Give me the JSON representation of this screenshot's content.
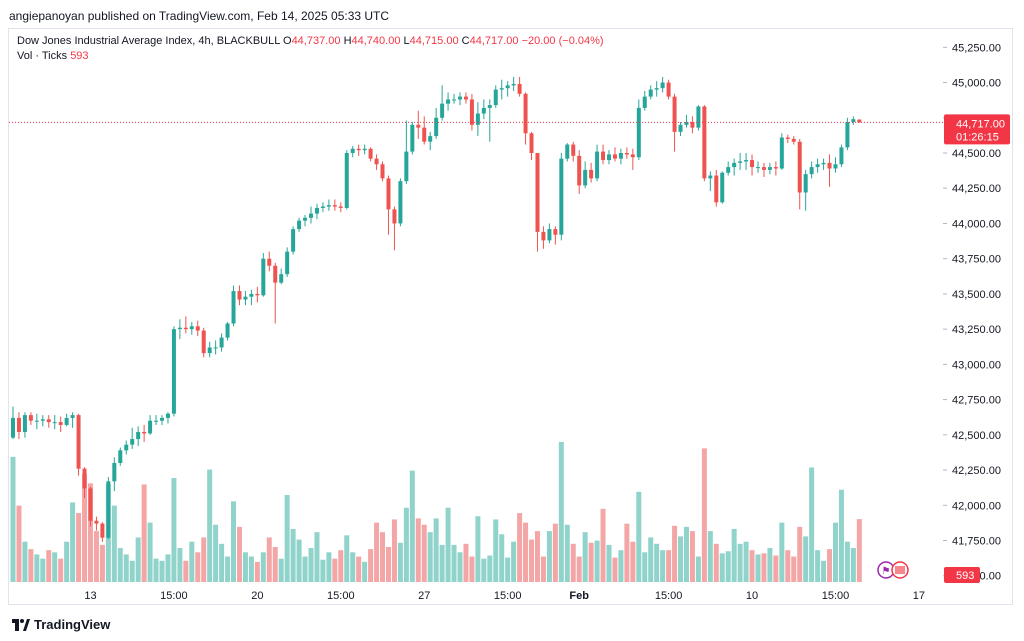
{
  "header": {
    "published_by": "angiepanoyan published on TradingView.com, Feb 14, 2025 05:33 UTC"
  },
  "legend": {
    "symbol": "Dow Jones Industrial Average Index, 4h, BLACKBULL",
    "open_label": "O",
    "open": "44,737.00",
    "high_label": "H",
    "high": "44,740.00",
    "low_label": "L",
    "low": "44,715.00",
    "close_label": "C",
    "close": "44,717.00",
    "change": "−20.00 (−0.04%)",
    "volume_label": "Vol · Ticks",
    "volume_value": "593"
  },
  "price_axis": {
    "ticks": [
      "45,250.00",
      "45,000.00",
      "44,750.00",
      "44,500.00",
      "44,250.00",
      "44,000.00",
      "43,750.00",
      "43,500.00",
      "43,250.00",
      "43,000.00",
      "42,750.00",
      "42,500.00",
      "42,250.00",
      "42,000.00",
      "41,750.00",
      "41,500.00"
    ],
    "last_price": "44,717.00",
    "countdown": "01:26:15",
    "volume_badge": "593"
  },
  "time_axis": {
    "ticks": [
      "13",
      "15:00",
      "20",
      "15:00",
      "27",
      "15:00",
      "Feb",
      "15:00",
      "10",
      "15:00",
      "17"
    ]
  },
  "brand": {
    "name": "TradingView"
  },
  "colors": {
    "up": "#26a69a",
    "down": "#ef5350",
    "vol_up": "#8fd3ca",
    "vol_down": "#f4a6a6",
    "last_line": "#f23645"
  },
  "chart_data": {
    "type": "candlestick",
    "title": "Dow Jones Industrial Average Index, 4h, BLACKBULL",
    "ylim": [
      41420,
      45380
    ],
    "candles": [
      {
        "o": 42480,
        "h": 42700,
        "l": 42470,
        "c": 42620,
        "v": 1180
      },
      {
        "o": 42620,
        "h": 42660,
        "l": 42470,
        "c": 42520,
        "v": 720
      },
      {
        "o": 42520,
        "h": 42660,
        "l": 42480,
        "c": 42640,
        "v": 380
      },
      {
        "o": 42640,
        "h": 42660,
        "l": 42570,
        "c": 42600,
        "v": 310
      },
      {
        "o": 42600,
        "h": 42650,
        "l": 42540,
        "c": 42600,
        "v": 260
      },
      {
        "o": 42600,
        "h": 42640,
        "l": 42560,
        "c": 42610,
        "v": 220
      },
      {
        "o": 42610,
        "h": 42640,
        "l": 42550,
        "c": 42590,
        "v": 300
      },
      {
        "o": 42590,
        "h": 42640,
        "l": 42540,
        "c": 42590,
        "v": 280
      },
      {
        "o": 42590,
        "h": 42630,
        "l": 42520,
        "c": 42570,
        "v": 220
      },
      {
        "o": 42570,
        "h": 42650,
        "l": 42560,
        "c": 42620,
        "v": 380
      },
      {
        "o": 42620,
        "h": 42660,
        "l": 42550,
        "c": 42640,
        "v": 750
      },
      {
        "o": 42640,
        "h": 42650,
        "l": 42210,
        "c": 42260,
        "v": 650
      },
      {
        "o": 42260,
        "h": 42270,
        "l": 42050,
        "c": 42120,
        "v": 1020
      },
      {
        "o": 42120,
        "h": 42130,
        "l": 41850,
        "c": 41890,
        "v": 930
      },
      {
        "o": 41890,
        "h": 41920,
        "l": 41820,
        "c": 41870,
        "v": 480
      },
      {
        "o": 41870,
        "h": 41880,
        "l": 41740,
        "c": 41770,
        "v": 350
      },
      {
        "o": 41770,
        "h": 42200,
        "l": 41760,
        "c": 42170,
        "v": 920
      },
      {
        "o": 42170,
        "h": 42340,
        "l": 42100,
        "c": 42300,
        "v": 720
      },
      {
        "o": 42300,
        "h": 42410,
        "l": 42280,
        "c": 42390,
        "v": 320
      },
      {
        "o": 42390,
        "h": 42460,
        "l": 42360,
        "c": 42430,
        "v": 260
      },
      {
        "o": 42430,
        "h": 42550,
        "l": 42400,
        "c": 42470,
        "v": 200
      },
      {
        "o": 42470,
        "h": 42560,
        "l": 42420,
        "c": 42520,
        "v": 420
      },
      {
        "o": 42520,
        "h": 42570,
        "l": 42450,
        "c": 42510,
        "v": 920
      },
      {
        "o": 42510,
        "h": 42640,
        "l": 42500,
        "c": 42600,
        "v": 560
      },
      {
        "o": 42600,
        "h": 42640,
        "l": 42570,
        "c": 42600,
        "v": 220
      },
      {
        "o": 42600,
        "h": 42640,
        "l": 42570,
        "c": 42620,
        "v": 200
      },
      {
        "o": 42620,
        "h": 42660,
        "l": 42580,
        "c": 42650,
        "v": 260
      },
      {
        "o": 42650,
        "h": 43270,
        "l": 42630,
        "c": 43250,
        "v": 980
      },
      {
        "o": 43250,
        "h": 43320,
        "l": 43180,
        "c": 43260,
        "v": 320
      },
      {
        "o": 43260,
        "h": 43340,
        "l": 43220,
        "c": 43250,
        "v": 200
      },
      {
        "o": 43250,
        "h": 43300,
        "l": 43210,
        "c": 43270,
        "v": 380
      },
      {
        "o": 43270,
        "h": 43310,
        "l": 43200,
        "c": 43240,
        "v": 280
      },
      {
        "o": 43240,
        "h": 43260,
        "l": 43050,
        "c": 43080,
        "v": 420
      },
      {
        "o": 43080,
        "h": 43160,
        "l": 43050,
        "c": 43120,
        "v": 1060
      },
      {
        "o": 43120,
        "h": 43170,
        "l": 43070,
        "c": 43120,
        "v": 540
      },
      {
        "o": 43120,
        "h": 43220,
        "l": 43090,
        "c": 43190,
        "v": 360
      },
      {
        "o": 43190,
        "h": 43300,
        "l": 43170,
        "c": 43290,
        "v": 240
      },
      {
        "o": 43290,
        "h": 43560,
        "l": 43270,
        "c": 43520,
        "v": 760
      },
      {
        "o": 43520,
        "h": 43560,
        "l": 43420,
        "c": 43460,
        "v": 520
      },
      {
        "o": 43460,
        "h": 43520,
        "l": 43420,
        "c": 43480,
        "v": 280
      },
      {
        "o": 43480,
        "h": 43530,
        "l": 43420,
        "c": 43500,
        "v": 240
      },
      {
        "o": 43500,
        "h": 43550,
        "l": 43440,
        "c": 43490,
        "v": 190
      },
      {
        "o": 43490,
        "h": 43790,
        "l": 43480,
        "c": 43750,
        "v": 280
      },
      {
        "o": 43750,
        "h": 43800,
        "l": 43660,
        "c": 43700,
        "v": 420
      },
      {
        "o": 43700,
        "h": 43720,
        "l": 43290,
        "c": 43580,
        "v": 330
      },
      {
        "o": 43580,
        "h": 43680,
        "l": 43570,
        "c": 43640,
        "v": 220
      },
      {
        "o": 43640,
        "h": 43830,
        "l": 43620,
        "c": 43800,
        "v": 820
      },
      {
        "o": 43800,
        "h": 43980,
        "l": 43780,
        "c": 43960,
        "v": 500
      },
      {
        "o": 43960,
        "h": 44040,
        "l": 43940,
        "c": 44020,
        "v": 400
      },
      {
        "o": 44020,
        "h": 44060,
        "l": 43980,
        "c": 44040,
        "v": 240
      },
      {
        "o": 44040,
        "h": 44120,
        "l": 44000,
        "c": 44070,
        "v": 320
      },
      {
        "o": 44070,
        "h": 44140,
        "l": 44030,
        "c": 44110,
        "v": 470
      },
      {
        "o": 44110,
        "h": 44150,
        "l": 44080,
        "c": 44120,
        "v": 210
      },
      {
        "o": 44120,
        "h": 44170,
        "l": 44090,
        "c": 44130,
        "v": 280
      },
      {
        "o": 44130,
        "h": 44170,
        "l": 44090,
        "c": 44120,
        "v": 220
      },
      {
        "o": 44120,
        "h": 44150,
        "l": 44080,
        "c": 44110,
        "v": 300
      },
      {
        "o": 44110,
        "h": 44520,
        "l": 44100,
        "c": 44500,
        "v": 440
      },
      {
        "o": 44500,
        "h": 44550,
        "l": 44470,
        "c": 44530,
        "v": 280
      },
      {
        "o": 44530,
        "h": 44560,
        "l": 44480,
        "c": 44520,
        "v": 240
      },
      {
        "o": 44520,
        "h": 44560,
        "l": 44490,
        "c": 44530,
        "v": 190
      },
      {
        "o": 44530,
        "h": 44540,
        "l": 44440,
        "c": 44460,
        "v": 310
      },
      {
        "o": 44460,
        "h": 44490,
        "l": 44380,
        "c": 44420,
        "v": 560
      },
      {
        "o": 44420,
        "h": 44440,
        "l": 44300,
        "c": 44320,
        "v": 470
      },
      {
        "o": 44320,
        "h": 44340,
        "l": 43920,
        "c": 44100,
        "v": 330
      },
      {
        "o": 44100,
        "h": 44120,
        "l": 43810,
        "c": 44000,
        "v": 590
      },
      {
        "o": 44000,
        "h": 44320,
        "l": 43980,
        "c": 44300,
        "v": 370
      },
      {
        "o": 44300,
        "h": 44730,
        "l": 44280,
        "c": 44510,
        "v": 700
      },
      {
        "o": 44510,
        "h": 44720,
        "l": 44490,
        "c": 44700,
        "v": 1050
      },
      {
        "o": 44700,
        "h": 44800,
        "l": 44600,
        "c": 44680,
        "v": 600
      },
      {
        "o": 44680,
        "h": 44760,
        "l": 44560,
        "c": 44580,
        "v": 540
      },
      {
        "o": 44580,
        "h": 44650,
        "l": 44520,
        "c": 44620,
        "v": 470
      },
      {
        "o": 44620,
        "h": 44820,
        "l": 44600,
        "c": 44750,
        "v": 600
      },
      {
        "o": 44750,
        "h": 44980,
        "l": 44730,
        "c": 44850,
        "v": 350
      },
      {
        "o": 44850,
        "h": 44930,
        "l": 44800,
        "c": 44880,
        "v": 700
      },
      {
        "o": 44880,
        "h": 44920,
        "l": 44850,
        "c": 44880,
        "v": 350
      },
      {
        "o": 44880,
        "h": 44930,
        "l": 44840,
        "c": 44900,
        "v": 280
      },
      {
        "o": 44900,
        "h": 44930,
        "l": 44850,
        "c": 44880,
        "v": 360
      },
      {
        "o": 44880,
        "h": 44920,
        "l": 44660,
        "c": 44700,
        "v": 240
      },
      {
        "o": 44700,
        "h": 44860,
        "l": 44620,
        "c": 44780,
        "v": 620
      },
      {
        "o": 44780,
        "h": 44880,
        "l": 44740,
        "c": 44820,
        "v": 220
      },
      {
        "o": 44820,
        "h": 44880,
        "l": 44580,
        "c": 44840,
        "v": 250
      },
      {
        "o": 44840,
        "h": 44980,
        "l": 44820,
        "c": 44950,
        "v": 590
      },
      {
        "o": 44950,
        "h": 45020,
        "l": 44880,
        "c": 44960,
        "v": 450
      },
      {
        "o": 44960,
        "h": 45010,
        "l": 44900,
        "c": 44980,
        "v": 230
      },
      {
        "o": 44980,
        "h": 45040,
        "l": 44940,
        "c": 44990,
        "v": 380
      },
      {
        "o": 44990,
        "h": 45040,
        "l": 44900,
        "c": 44920,
        "v": 650
      },
      {
        "o": 44920,
        "h": 44930,
        "l": 44560,
        "c": 44640,
        "v": 560
      },
      {
        "o": 44640,
        "h": 44650,
        "l": 44450,
        "c": 44500,
        "v": 400
      },
      {
        "o": 44500,
        "h": 44500,
        "l": 43800,
        "c": 43940,
        "v": 480
      },
      {
        "o": 43940,
        "h": 43980,
        "l": 43820,
        "c": 43880,
        "v": 240
      },
      {
        "o": 43880,
        "h": 44000,
        "l": 43860,
        "c": 43960,
        "v": 480
      },
      {
        "o": 43960,
        "h": 43980,
        "l": 43850,
        "c": 43920,
        "v": 550
      },
      {
        "o": 43920,
        "h": 44500,
        "l": 43880,
        "c": 44460,
        "v": 1320
      },
      {
        "o": 44460,
        "h": 44570,
        "l": 44440,
        "c": 44560,
        "v": 540
      },
      {
        "o": 44560,
        "h": 44580,
        "l": 44440,
        "c": 44480,
        "v": 360
      },
      {
        "o": 44480,
        "h": 44520,
        "l": 44210,
        "c": 44270,
        "v": 240
      },
      {
        "o": 44270,
        "h": 44440,
        "l": 44250,
        "c": 44380,
        "v": 470
      },
      {
        "o": 44380,
        "h": 44430,
        "l": 44290,
        "c": 44320,
        "v": 370
      },
      {
        "o": 44320,
        "h": 44560,
        "l": 44300,
        "c": 44510,
        "v": 390
      },
      {
        "o": 44510,
        "h": 44560,
        "l": 44420,
        "c": 44450,
        "v": 690
      },
      {
        "o": 44450,
        "h": 44520,
        "l": 44420,
        "c": 44490,
        "v": 350
      },
      {
        "o": 44490,
        "h": 44540,
        "l": 44440,
        "c": 44460,
        "v": 230
      },
      {
        "o": 44460,
        "h": 44530,
        "l": 44420,
        "c": 44500,
        "v": 300
      },
      {
        "o": 44500,
        "h": 44540,
        "l": 44460,
        "c": 44490,
        "v": 550
      },
      {
        "o": 44490,
        "h": 44530,
        "l": 44380,
        "c": 44470,
        "v": 380
      },
      {
        "o": 44470,
        "h": 44880,
        "l": 44450,
        "c": 44820,
        "v": 850
      },
      {
        "o": 44820,
        "h": 44940,
        "l": 44800,
        "c": 44900,
        "v": 280
      },
      {
        "o": 44900,
        "h": 44980,
        "l": 44880,
        "c": 44950,
        "v": 420
      },
      {
        "o": 44950,
        "h": 45010,
        "l": 44900,
        "c": 44960,
        "v": 360
      },
      {
        "o": 44960,
        "h": 45040,
        "l": 44930,
        "c": 45000,
        "v": 300
      },
      {
        "o": 45000,
        "h": 45020,
        "l": 44880,
        "c": 44900,
        "v": 300
      },
      {
        "o": 44900,
        "h": 44920,
        "l": 44510,
        "c": 44650,
        "v": 530
      },
      {
        "o": 44650,
        "h": 44720,
        "l": 44620,
        "c": 44700,
        "v": 430
      },
      {
        "o": 44700,
        "h": 44770,
        "l": 44680,
        "c": 44720,
        "v": 520
      },
      {
        "o": 44720,
        "h": 44760,
        "l": 44640,
        "c": 44680,
        "v": 480
      },
      {
        "o": 44680,
        "h": 44840,
        "l": 44660,
        "c": 44830,
        "v": 240
      },
      {
        "o": 44830,
        "h": 44840,
        "l": 44300,
        "c": 44320,
        "v": 1260
      },
      {
        "o": 44320,
        "h": 44370,
        "l": 44230,
        "c": 44340,
        "v": 480
      },
      {
        "o": 44340,
        "h": 44380,
        "l": 44120,
        "c": 44150,
        "v": 360
      },
      {
        "o": 44150,
        "h": 44370,
        "l": 44140,
        "c": 44360,
        "v": 270
      },
      {
        "o": 44360,
        "h": 44440,
        "l": 44340,
        "c": 44400,
        "v": 290
      },
      {
        "o": 44400,
        "h": 44460,
        "l": 44340,
        "c": 44430,
        "v": 500
      },
      {
        "o": 44430,
        "h": 44500,
        "l": 44380,
        "c": 44440,
        "v": 360
      },
      {
        "o": 44440,
        "h": 44500,
        "l": 44380,
        "c": 44450,
        "v": 380
      },
      {
        "o": 44450,
        "h": 44490,
        "l": 44340,
        "c": 44400,
        "v": 300
      },
      {
        "o": 44400,
        "h": 44440,
        "l": 44360,
        "c": 44400,
        "v": 260
      },
      {
        "o": 44400,
        "h": 44430,
        "l": 44330,
        "c": 44380,
        "v": 270
      },
      {
        "o": 44380,
        "h": 44430,
        "l": 44350,
        "c": 44400,
        "v": 320
      },
      {
        "o": 44400,
        "h": 44440,
        "l": 44340,
        "c": 44390,
        "v": 250
      },
      {
        "o": 44390,
        "h": 44640,
        "l": 44380,
        "c": 44610,
        "v": 560
      },
      {
        "o": 44610,
        "h": 44630,
        "l": 44570,
        "c": 44600,
        "v": 300
      },
      {
        "o": 44600,
        "h": 44620,
        "l": 44560,
        "c": 44580,
        "v": 240
      },
      {
        "o": 44580,
        "h": 44600,
        "l": 44100,
        "c": 44220,
        "v": 520
      },
      {
        "o": 44220,
        "h": 44380,
        "l": 44090,
        "c": 44350,
        "v": 430
      },
      {
        "o": 44350,
        "h": 44440,
        "l": 44320,
        "c": 44400,
        "v": 1080
      },
      {
        "o": 44400,
        "h": 44460,
        "l": 44360,
        "c": 44420,
        "v": 300
      },
      {
        "o": 44420,
        "h": 44460,
        "l": 44380,
        "c": 44430,
        "v": 200
      },
      {
        "o": 44430,
        "h": 44490,
        "l": 44260,
        "c": 44390,
        "v": 310
      },
      {
        "o": 44390,
        "h": 44470,
        "l": 44360,
        "c": 44420,
        "v": 560
      },
      {
        "o": 44420,
        "h": 44560,
        "l": 44400,
        "c": 44540,
        "v": 870
      },
      {
        "o": 44540,
        "h": 44750,
        "l": 44520,
        "c": 44720,
        "v": 380
      },
      {
        "o": 44720,
        "h": 44760,
        "l": 44700,
        "c": 44740,
        "v": 320
      },
      {
        "o": 44737,
        "h": 44740,
        "l": 44715,
        "c": 44717,
        "v": 593
      }
    ]
  }
}
